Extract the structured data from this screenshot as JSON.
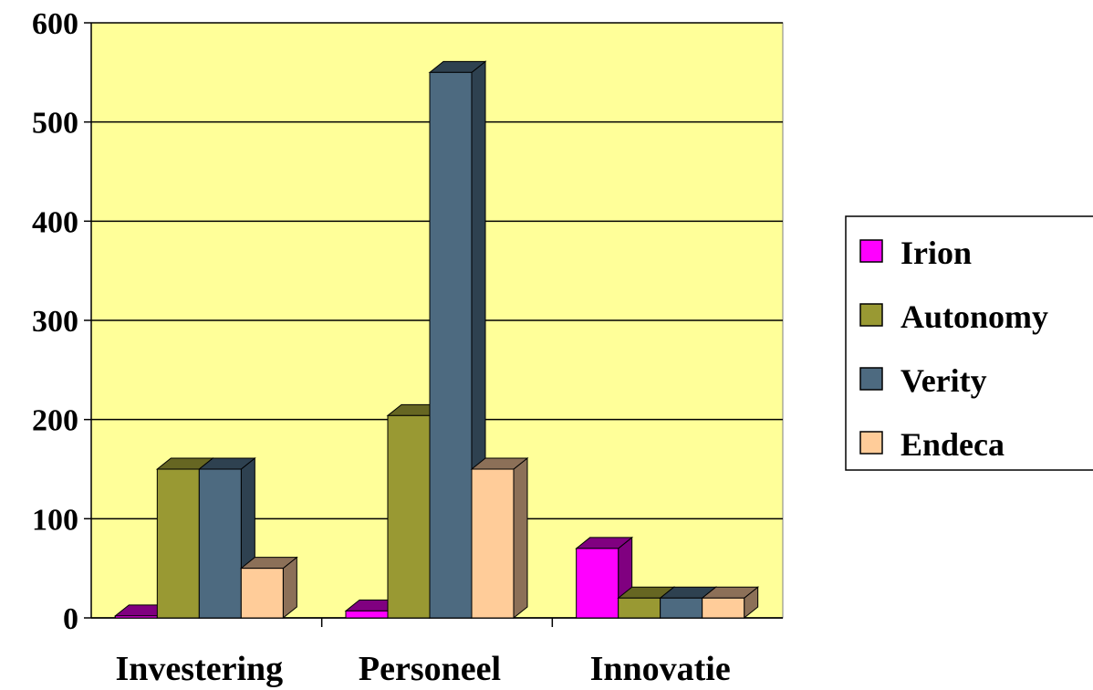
{
  "chart_data": {
    "type": "bar",
    "style": "3d-clustered-column",
    "categories": [
      "Investering",
      "Personeel",
      "Innovatie"
    ],
    "series": [
      {
        "name": "Irion",
        "values": [
          2,
          7,
          70
        ],
        "color": "#FF00FF",
        "side_color": "#800080"
      },
      {
        "name": "Autonomy",
        "values": [
          150,
          204,
          20
        ],
        "color": "#999933",
        "side_color": "#666622"
      },
      {
        "name": "Verity",
        "values": [
          150,
          550,
          20
        ],
        "color": "#4D6A80",
        "side_color": "#2E4150"
      },
      {
        "name": "Endeca",
        "values": [
          50,
          150,
          20
        ],
        "color": "#FFCC99",
        "side_color": "#8C7058"
      }
    ],
    "y_ticks": [
      "0",
      "100",
      "200",
      "300",
      "400",
      "500",
      "600"
    ],
    "ylim": [
      0,
      600
    ],
    "grid": true,
    "plot_background": "#FFFF99",
    "legend_position": "right"
  }
}
